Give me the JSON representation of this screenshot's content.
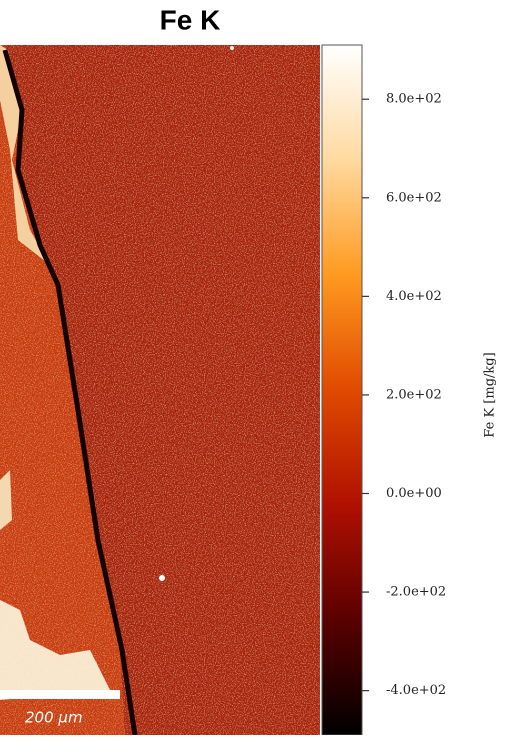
{
  "chart_data": {
    "type": "image-map",
    "title": "Fe K",
    "colorbar_label": "Fe K  [mg/kg]",
    "ylim": [
      -490,
      910
    ],
    "yticks": [
      {
        "value": -400,
        "label": "-4.0e+02"
      },
      {
        "value": -200,
        "label": "-2.0e+02"
      },
      {
        "value": 0,
        "label": "0.0e+00"
      },
      {
        "value": 200,
        "label": "2.0e+02"
      },
      {
        "value": 400,
        "label": "4.0e+02"
      },
      {
        "value": 600,
        "label": "6.0e+02"
      },
      {
        "value": 800,
        "label": "8.0e+02"
      }
    ],
    "colormap": [
      "#000000",
      "#5a0000",
      "#b01000",
      "#e04a00",
      "#ff9a20",
      "#ffd9a0",
      "#ffffff"
    ],
    "scale_bar_label": "200 μm"
  }
}
